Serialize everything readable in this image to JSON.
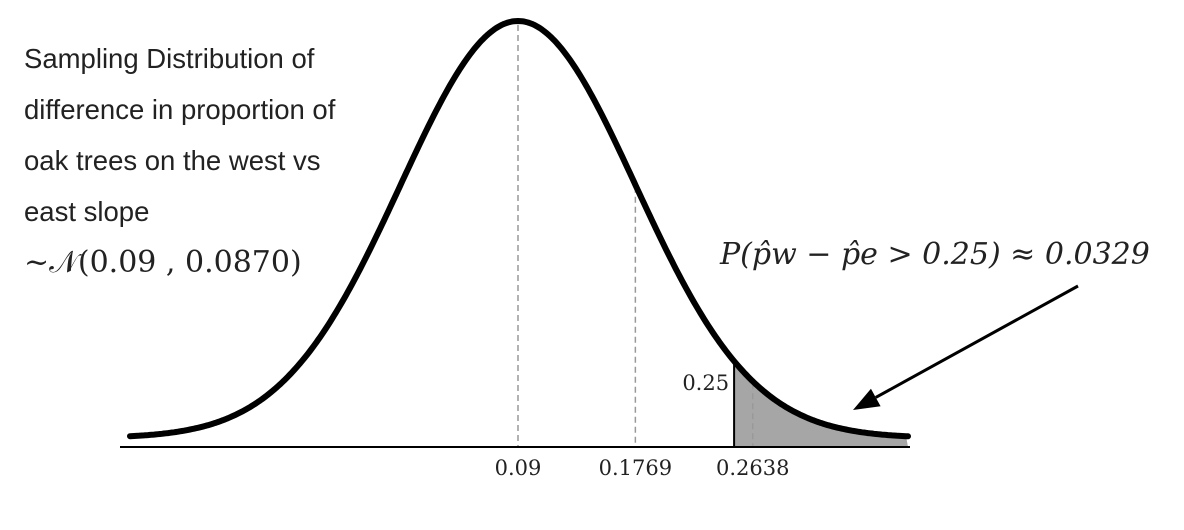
{
  "description": {
    "line1": "Sampling Distribution of",
    "line2": "difference in proportion of",
    "line3": "oak trees on the west vs",
    "line4": "east slope",
    "distribution": "~𝒩(0.09 , 0.0870)"
  },
  "probability_label": "P(p̂w − p̂e > 0.25) ≈ 0.0329",
  "threshold_label": "0.25",
  "distribution_params": {
    "mean": 0.09,
    "sd": 0.087,
    "threshold": 0.25
  },
  "tick_labels": [
    {
      "value": 0.09,
      "text": "0.09"
    },
    {
      "value": 0.1769,
      "text": "0.1769"
    },
    {
      "value": 0.2638,
      "text": "0.2638"
    }
  ],
  "colors": {
    "curve": "#000000",
    "shaded_tail": "#a6a6a6",
    "dashed_lines": "#999999",
    "axis": "#000000"
  }
}
